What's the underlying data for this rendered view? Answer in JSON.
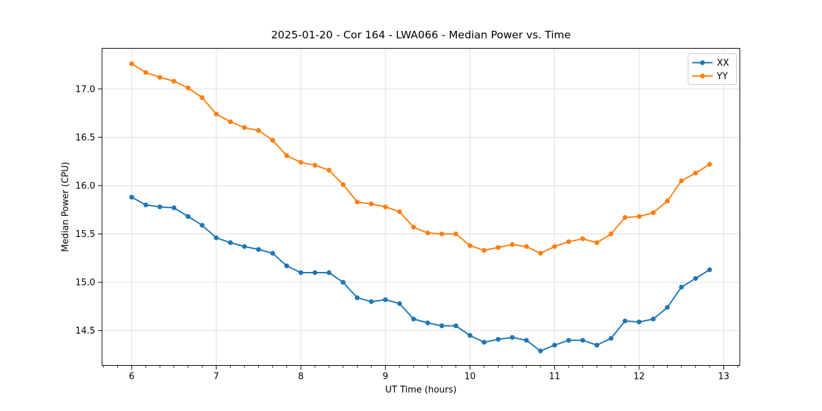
{
  "chart_data": {
    "type": "line",
    "title": "2025-01-20 - Cor 164 - LWA066 - Median Power vs. Time",
    "xlabel": "UT Time (hours)",
    "ylabel": "Median Power (CPU)",
    "xlim": [
      5.65,
      13.19
    ],
    "ylim": [
      14.14,
      17.42
    ],
    "x_ticks": [
      6,
      7,
      8,
      9,
      10,
      11,
      12,
      13
    ],
    "y_ticks": [
      14.5,
      15.0,
      15.5,
      16.0,
      16.5,
      17.0
    ],
    "x_minor_tick_step": 0.16667,
    "grid": true,
    "grid_color": "#e0e0e0",
    "legend_position": "upper right",
    "x": [
      6.0,
      6.167,
      6.333,
      6.5,
      6.667,
      6.833,
      7.0,
      7.167,
      7.333,
      7.5,
      7.667,
      7.833,
      8.0,
      8.167,
      8.333,
      8.5,
      8.667,
      8.833,
      9.0,
      9.167,
      9.333,
      9.5,
      9.667,
      9.833,
      10.0,
      10.167,
      10.333,
      10.5,
      10.667,
      10.833,
      11.0,
      11.167,
      11.333,
      11.5,
      11.667,
      11.833,
      12.0,
      12.167,
      12.333,
      12.5,
      12.667,
      12.833
    ],
    "series": [
      {
        "name": "XX",
        "color": "#1f77b4",
        "values": [
          15.88,
          15.8,
          15.78,
          15.77,
          15.68,
          15.59,
          15.46,
          15.41,
          15.37,
          15.34,
          15.3,
          15.17,
          15.1,
          15.1,
          15.1,
          15.0,
          14.84,
          14.8,
          14.82,
          14.78,
          14.62,
          14.58,
          14.55,
          14.55,
          14.45,
          14.38,
          14.41,
          14.43,
          14.4,
          14.29,
          14.35,
          14.4,
          14.4,
          14.35,
          14.42,
          14.6,
          14.59,
          14.62,
          14.74,
          14.95,
          15.04,
          15.13
        ]
      },
      {
        "name": "YY",
        "color": "#ff7f0e",
        "values": [
          17.26,
          17.17,
          17.12,
          17.08,
          17.01,
          16.91,
          16.74,
          16.66,
          16.6,
          16.57,
          16.47,
          16.31,
          16.24,
          16.21,
          16.16,
          16.01,
          15.83,
          15.81,
          15.78,
          15.73,
          15.57,
          15.51,
          15.5,
          15.5,
          15.38,
          15.33,
          15.36,
          15.39,
          15.37,
          15.3,
          15.37,
          15.42,
          15.45,
          15.41,
          15.5,
          15.67,
          15.68,
          15.72,
          15.84,
          16.05,
          16.13,
          16.22
        ]
      }
    ]
  }
}
